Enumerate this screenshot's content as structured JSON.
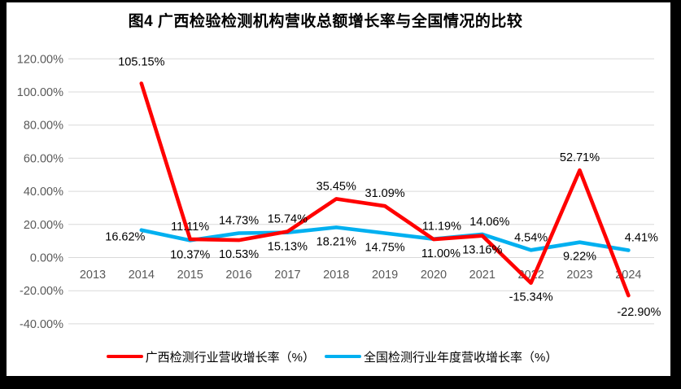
{
  "figure": {
    "caption": "图4 广西检验检测机构营收总额增长率与全国情况的比较"
  },
  "chart_data": {
    "type": "line",
    "title": "图4 广西检验检测机构营收总额增长率与全国情况的比较",
    "categories": [
      "2013",
      "2014",
      "2015",
      "2016",
      "2017",
      "2018",
      "2019",
      "2020",
      "2021",
      "2022",
      "2023",
      "2024"
    ],
    "y_axis": {
      "tick_labels": [
        "120.00%",
        "100.00%",
        "80.00%",
        "60.00%",
        "40.00%",
        "20.00%",
        "0.00%",
        "-20.00%",
        "-40.00%"
      ],
      "tick_values": [
        120,
        100,
        80,
        60,
        40,
        20,
        0,
        -20,
        -40
      ],
      "min": -40,
      "max": 120,
      "grid": true
    },
    "grid_color": "#D9D9D9",
    "axis_label_color": "#595959",
    "data_label_color": "#000000",
    "legend_position": "bottom",
    "series": [
      {
        "name": "广西检测行业营收增长率（%）",
        "color": "#FF0000",
        "values": [
          null,
          105.15,
          11.11,
          10.53,
          15.74,
          35.45,
          31.09,
          11.0,
          13.16,
          -15.34,
          52.71,
          -22.9
        ],
        "label_pos": [
          null,
          "above",
          "above",
          "below",
          "above",
          "above",
          "above",
          "below",
          "below",
          "below",
          "above",
          "below"
        ],
        "label_dx": {
          "2020": 9,
          "2024": 13
        },
        "label_dy": {
          "2014": -27,
          "2024": 20
        }
      },
      {
        "name": "全国检测行业年度营收增长率（%）",
        "color": "#00B0F0",
        "values": [
          null,
          16.62,
          10.37,
          14.73,
          15.13,
          18.21,
          14.75,
          11.19,
          14.06,
          4.54,
          9.22,
          4.41
        ],
        "label_pos": [
          null,
          "left",
          "below",
          "above",
          "below",
          "below",
          "below",
          "above",
          "above",
          "above",
          "below",
          "above"
        ],
        "label_dx": {
          "2020": 10,
          "2021": 9,
          "2024": 16
        },
        "label_dy": {}
      }
    ]
  }
}
